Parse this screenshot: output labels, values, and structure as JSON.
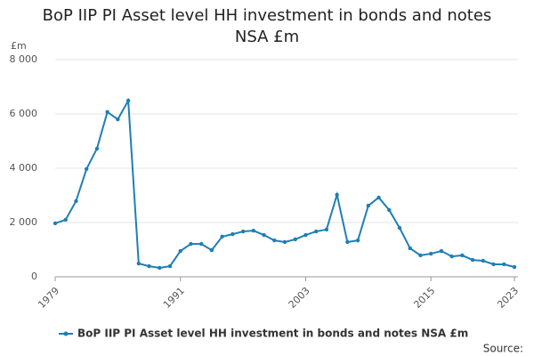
{
  "chart_data": {
    "type": "line",
    "title": "BoP IIP PI Asset level HH investment in bonds and notes NSA £m",
    "y_label": "£m",
    "source": "Source:",
    "x": [
      1979,
      1980,
      1981,
      1982,
      1983,
      1984,
      1985,
      1986,
      1987,
      1988,
      1989,
      1990,
      1991,
      1992,
      1993,
      1994,
      1995,
      1996,
      1997,
      1998,
      1999,
      2000,
      2001,
      2002,
      2003,
      2004,
      2005,
      2006,
      2007,
      2008,
      2009,
      2010,
      2011,
      2012,
      2013,
      2014,
      2015,
      2016,
      2017,
      2018,
      2019,
      2020,
      2021,
      2022,
      2023
    ],
    "series": [
      {
        "name": "BoP IIP PI Asset level HH investment in bonds and notes NSA £m",
        "color": "#1f7fb5",
        "values": [
          1970,
          2100,
          2790,
          3970,
          4720,
          6070,
          5800,
          6490,
          490,
          390,
          330,
          390,
          950,
          1210,
          1210,
          980,
          1480,
          1570,
          1670,
          1700,
          1540,
          1340,
          1280,
          1380,
          1540,
          1670,
          1740,
          3020,
          1280,
          1340,
          2620,
          2920,
          2460,
          1800,
          1050,
          790,
          850,
          950,
          750,
          790,
          620,
          590,
          460,
          460,
          360
        ]
      }
    ],
    "xlim": [
      1979,
      2023
    ],
    "xticks": [
      1979,
      1991,
      2003,
      2015,
      2023
    ],
    "ylim": [
      0,
      8000
    ],
    "yticks": [
      0,
      {
        "value": 2000,
        "label": "2 000"
      },
      {
        "value": 4000,
        "label": "4 000"
      },
      {
        "value": 6000,
        "label": "6 000"
      },
      {
        "value": 8000,
        "label": "8 000"
      }
    ],
    "grid": true
  }
}
